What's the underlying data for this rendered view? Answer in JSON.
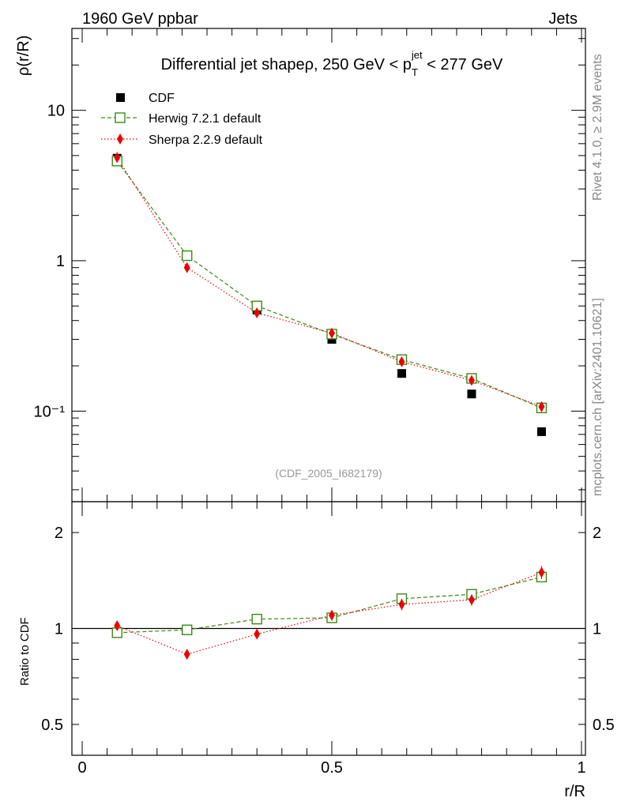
{
  "header": {
    "left_label": "1960 GeV ppbar",
    "right_label": "Jets"
  },
  "side_labels": {
    "rivet": "Rivet 4.1.0, ≥ 2.9M events",
    "mcplots": "mcplots.cern.ch [arXiv:2401.10621]"
  },
  "chart_data": [
    {
      "type": "line",
      "panel": "main",
      "title": "Differential jet shapeρ, 250 GeV < p_T^jet < 277 GeV",
      "title_parts": {
        "prefix": "Differential jet shapeρ, 250 GeV < p",
        "sub": "T",
        "sup": "jet",
        "suffix": " < 277 GeV"
      },
      "xlabel": "r/R",
      "ylabel": "ρ(r/R)",
      "yscale": "log",
      "xlim": [
        0,
        1
      ],
      "ylim": [
        0.025,
        35
      ],
      "y_ticks": [
        {
          "value": 10,
          "label": "10"
        },
        {
          "value": 1,
          "label": "1"
        },
        {
          "value": 0.1,
          "label": "10⁻¹"
        }
      ],
      "watermark": "(CDF_2005_I682179)",
      "x": [
        0.07,
        0.21,
        0.35,
        0.5,
        0.64,
        0.78,
        0.92
      ],
      "series": [
        {
          "name": "CDF",
          "style": "data",
          "color": "#000000",
          "values": [
            4.8,
            1.09,
            0.47,
            0.3,
            0.178,
            0.13,
            0.073
          ]
        },
        {
          "name": "Herwig 7.2.1 default",
          "style": "dashed",
          "color": "#3a8a16",
          "values": [
            4.6,
            1.08,
            0.5,
            0.325,
            0.22,
            0.165,
            0.105
          ]
        },
        {
          "name": "Sherpa 2.2.9 default",
          "style": "dotted",
          "color": "#ee0000",
          "values": [
            4.85,
            0.9,
            0.45,
            0.33,
            0.213,
            0.16,
            0.107
          ]
        }
      ]
    },
    {
      "type": "line",
      "panel": "ratio",
      "xlabel": "r/R",
      "ylabel": "Ratio to CDF",
      "yscale": "log",
      "xlim": [
        0,
        1
      ],
      "ylim": [
        0.4,
        2.5
      ],
      "y_ticks": [
        {
          "value": 2,
          "label": "2"
        },
        {
          "value": 1,
          "label": "1"
        },
        {
          "value": 0.5,
          "label": "0.5"
        }
      ],
      "x_ticks": [
        {
          "value": 0,
          "label": "0"
        },
        {
          "value": 0.5,
          "label": "0.5"
        },
        {
          "value": 1,
          "label": "1"
        }
      ],
      "x": [
        0.07,
        0.21,
        0.35,
        0.5,
        0.64,
        0.78,
        0.92
      ],
      "series": [
        {
          "name": "Herwig 7.2.1 default",
          "style": "dashed",
          "color": "#3a8a16",
          "values": [
            0.97,
            0.99,
            1.07,
            1.08,
            1.24,
            1.28,
            1.45
          ],
          "errors": [
            0.01,
            0.01,
            0.02,
            0.02,
            0.03,
            0.03,
            0.05
          ]
        },
        {
          "name": "Sherpa 2.2.9 default",
          "style": "dotted",
          "color": "#ee0000",
          "values": [
            1.02,
            0.83,
            0.96,
            1.1,
            1.19,
            1.23,
            1.5
          ],
          "errors": [
            0.02,
            0.02,
            0.03,
            0.04,
            0.05,
            0.05,
            0.07
          ]
        }
      ]
    }
  ]
}
